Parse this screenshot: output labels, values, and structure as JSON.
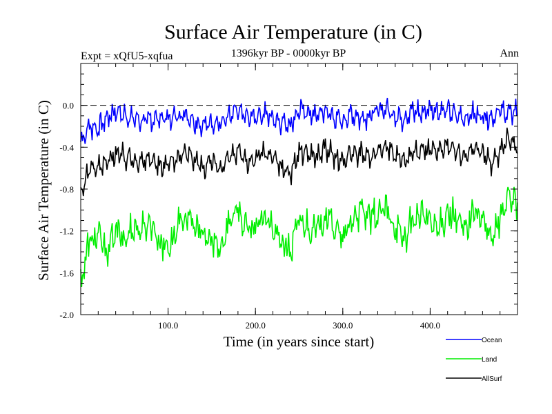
{
  "chart_data": {
    "type": "line",
    "title": "Surface Air Temperature (in C)",
    "subtitle": "1396kyr BP - 0000kyr BP",
    "left_label": "Expt = xQfU5-xqfua",
    "right_label": "Ann",
    "xlabel": "Time (in years since start)",
    "ylabel": "Surface Air Temperature (in C)",
    "xlim": [
      0,
      500
    ],
    "ylim": [
      -2.0,
      0.4
    ],
    "x_ticks": [
      100,
      200,
      300,
      400
    ],
    "x_tick_labels": [
      "100.0",
      "200.0",
      "300.0",
      "400.0"
    ],
    "y_ticks": [
      -2.0,
      -1.6,
      -1.2,
      -0.8,
      -0.4,
      0.0
    ],
    "y_tick_labels": [
      "-2.0",
      "-1.6",
      "-1.2",
      "-0.8",
      "-0.4",
      "0.0"
    ],
    "reference_line": 0.0,
    "legend_position": "bottom-right",
    "series": [
      {
        "name": "Ocean",
        "color": "#0000ff",
        "x": [
          0,
          10,
          20,
          30,
          40,
          50,
          60,
          70,
          80,
          90,
          100,
          110,
          120,
          130,
          140,
          150,
          160,
          170,
          180,
          190,
          200,
          210,
          220,
          230,
          240,
          250,
          260,
          270,
          280,
          290,
          300,
          310,
          320,
          330,
          340,
          350,
          360,
          370,
          380,
          390,
          400,
          410,
          420,
          430,
          440,
          450,
          460,
          470,
          480,
          490,
          500
        ],
        "values": [
          -0.35,
          -0.2,
          -0.22,
          -0.12,
          -0.05,
          -0.1,
          -0.12,
          -0.15,
          -0.14,
          -0.12,
          -0.13,
          -0.1,
          -0.08,
          -0.15,
          -0.2,
          -0.15,
          -0.18,
          -0.12,
          -0.05,
          -0.12,
          -0.1,
          -0.08,
          -0.12,
          -0.15,
          -0.18,
          -0.05,
          -0.07,
          -0.1,
          -0.05,
          -0.12,
          -0.15,
          -0.08,
          -0.12,
          -0.1,
          -0.05,
          -0.03,
          -0.1,
          -0.12,
          -0.05,
          -0.08,
          -0.03,
          -0.05,
          -0.05,
          -0.1,
          -0.12,
          -0.08,
          -0.1,
          -0.12,
          -0.05,
          -0.08,
          -0.05
        ]
      },
      {
        "name": "Land",
        "color": "#00ee00",
        "x": [
          0,
          10,
          20,
          30,
          40,
          50,
          60,
          70,
          80,
          90,
          100,
          110,
          120,
          130,
          140,
          150,
          160,
          170,
          180,
          190,
          200,
          210,
          220,
          230,
          240,
          250,
          260,
          270,
          280,
          290,
          300,
          310,
          320,
          330,
          340,
          350,
          360,
          370,
          380,
          390,
          400,
          410,
          420,
          430,
          440,
          450,
          460,
          470,
          480,
          490,
          500
        ],
        "values": [
          -1.7,
          -1.3,
          -1.25,
          -1.4,
          -1.2,
          -1.3,
          -1.15,
          -1.2,
          -1.1,
          -1.3,
          -1.35,
          -1.2,
          -1.05,
          -1.15,
          -1.25,
          -1.3,
          -1.35,
          -1.1,
          -1.0,
          -1.2,
          -1.15,
          -1.05,
          -1.2,
          -1.3,
          -1.4,
          -1.1,
          -1.15,
          -1.2,
          -1.05,
          -1.15,
          -1.3,
          -1.1,
          -1.0,
          -1.1,
          -1.05,
          -1.0,
          -1.15,
          -1.3,
          -1.1,
          -1.05,
          -1.1,
          -1.2,
          -1.0,
          -1.1,
          -1.2,
          -1.0,
          -1.1,
          -1.3,
          -1.1,
          -0.8,
          -1.0
        ]
      },
      {
        "name": "AllSurf",
        "color": "#000000",
        "x": [
          0,
          10,
          20,
          30,
          40,
          50,
          60,
          70,
          80,
          90,
          100,
          110,
          120,
          130,
          140,
          150,
          160,
          170,
          180,
          190,
          200,
          210,
          220,
          230,
          240,
          250,
          260,
          270,
          280,
          290,
          300,
          310,
          320,
          330,
          340,
          350,
          360,
          370,
          380,
          390,
          400,
          410,
          420,
          430,
          440,
          450,
          460,
          470,
          480,
          490,
          500
        ],
        "values": [
          -0.85,
          -0.6,
          -0.6,
          -0.55,
          -0.45,
          -0.5,
          -0.5,
          -0.55,
          -0.5,
          -0.6,
          -0.55,
          -0.5,
          -0.45,
          -0.5,
          -0.6,
          -0.55,
          -0.6,
          -0.5,
          -0.45,
          -0.55,
          -0.5,
          -0.45,
          -0.5,
          -0.6,
          -0.65,
          -0.45,
          -0.45,
          -0.5,
          -0.4,
          -0.5,
          -0.55,
          -0.45,
          -0.45,
          -0.5,
          -0.42,
          -0.4,
          -0.45,
          -0.55,
          -0.45,
          -0.45,
          -0.42,
          -0.45,
          -0.4,
          -0.45,
          -0.5,
          -0.4,
          -0.45,
          -0.55,
          -0.45,
          -0.3,
          -0.4
        ]
      }
    ]
  }
}
